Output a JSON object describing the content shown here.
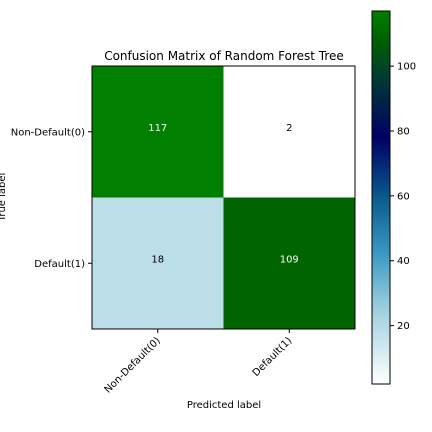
{
  "chart_data": {
    "type": "heatmap",
    "title": "Confusion Matrix of Random Forest Tree",
    "xlabel": "Predicted label",
    "ylabel": "True label",
    "x_categories": [
      "Non-Default(0)",
      "Default(1)"
    ],
    "y_categories": [
      "Non-Default(0)",
      "Default(1)"
    ],
    "matrix": [
      [
        117,
        2
      ],
      [
        18,
        109
      ]
    ],
    "colormap": "ocean_r",
    "value_range": [
      2,
      117
    ],
    "colorbar": {
      "ticks": [
        20,
        40,
        60,
        80,
        100
      ],
      "labels": [
        "20",
        "40",
        "60",
        "80",
        "100"
      ]
    },
    "cell_text_colors": {
      "light_on_dark": "#ffffff",
      "dark_on_light": "#000000"
    }
  }
}
